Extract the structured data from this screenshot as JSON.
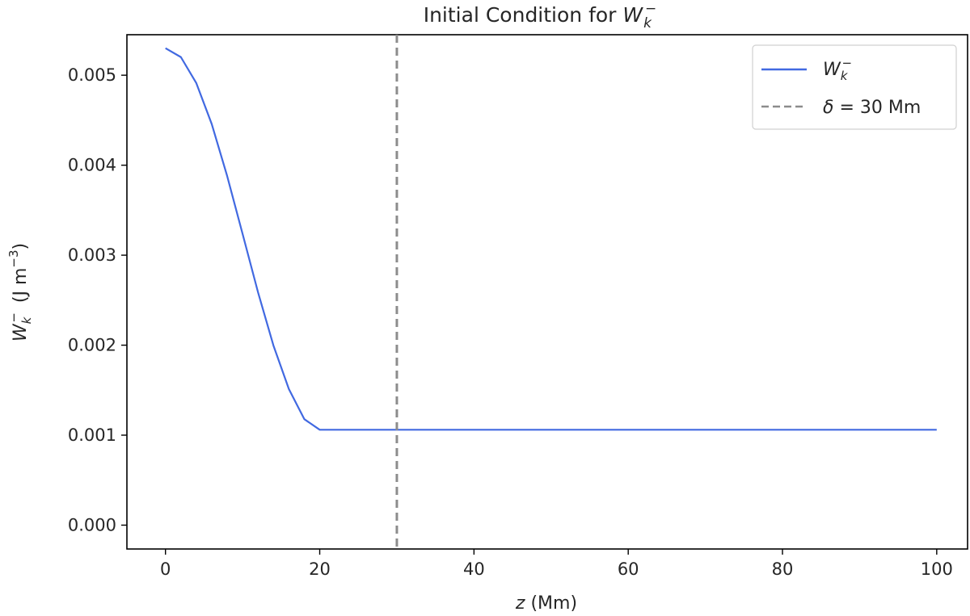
{
  "chart_data": {
    "type": "line",
    "title_prefix": "Initial Condition for ",
    "title_symbol": "W",
    "title_sub": "k",
    "title_sup": "−",
    "xlabel_var": "z",
    "xlabel_unit": " (Mm)",
    "ylabel_symbol": "W",
    "ylabel_sub": "k",
    "ylabel_sup": "−",
    "ylabel_unit_pre": "(J m",
    "ylabel_unit_sup": "−3",
    "ylabel_unit_post": ")",
    "xlim": [
      -5,
      104
    ],
    "ylim": [
      -0.000265,
      0.00545
    ],
    "xticks": [
      0,
      20,
      40,
      60,
      80,
      100
    ],
    "xtick_labels": [
      "0",
      "20",
      "40",
      "60",
      "80",
      "100"
    ],
    "yticks": [
      0.0,
      0.001,
      0.002,
      0.003,
      0.004,
      0.005
    ],
    "ytick_labels": [
      "0.000",
      "0.001",
      "0.002",
      "0.003",
      "0.004",
      "0.005"
    ],
    "series": [
      {
        "name_symbol": "W",
        "name_sub": "k",
        "name_sup": "−",
        "color": "#4169e1",
        "x": [
          0,
          2,
          4,
          6,
          8,
          10,
          12,
          14,
          16,
          18,
          20,
          22,
          24,
          26,
          28,
          30,
          40,
          50,
          60,
          70,
          80,
          90,
          100
        ],
        "y": [
          0.0053,
          0.005201,
          0.004912,
          0.004457,
          0.003879,
          0.003236,
          0.002588,
          0.001996,
          0.001513,
          0.001178,
          0.00106,
          0.00106,
          0.00106,
          0.00106,
          0.00106,
          0.00106,
          0.00106,
          0.00106,
          0.00106,
          0.00106,
          0.00106,
          0.00106,
          0.00106
        ]
      }
    ],
    "vline": {
      "x": 30,
      "color": "#8c8c8c",
      "label_symbol": "δ",
      "label_text": " = 30 Mm"
    },
    "legend_position": "upper right",
    "grid": false
  }
}
